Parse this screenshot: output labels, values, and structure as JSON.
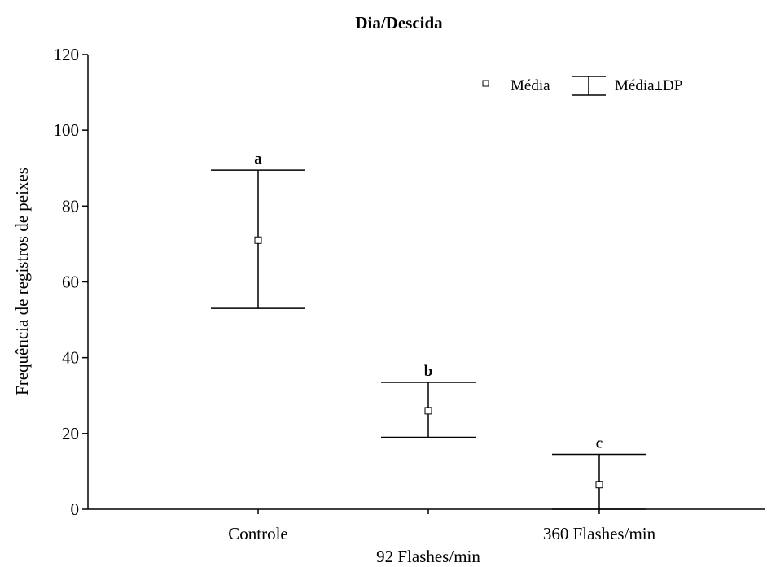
{
  "chart_data": {
    "type": "scatter",
    "title": "Dia/Descida",
    "ylabel": "Frequência de registros de peixes",
    "xlabel": "",
    "ylim": [
      0,
      120
    ],
    "yticks": [
      "0",
      "20",
      "40",
      "60",
      "80",
      "100",
      "120"
    ],
    "categories": [
      "Controle",
      "92 Flashes/min",
      "360 Flashes/min"
    ],
    "series": [
      {
        "name": "Média",
        "mean": [
          71,
          26,
          6.5
        ],
        "lower": [
          53,
          19,
          0
        ],
        "upper": [
          89.5,
          33.5,
          14.5
        ],
        "labels": [
          "a",
          "b",
          "c"
        ]
      }
    ],
    "legend": {
      "position": "top-right",
      "mean_label": "Média",
      "sd_label_prefix": "Média",
      "sd_label_pm": "±",
      "sd_label_suffix": "DP"
    },
    "grid": false
  }
}
